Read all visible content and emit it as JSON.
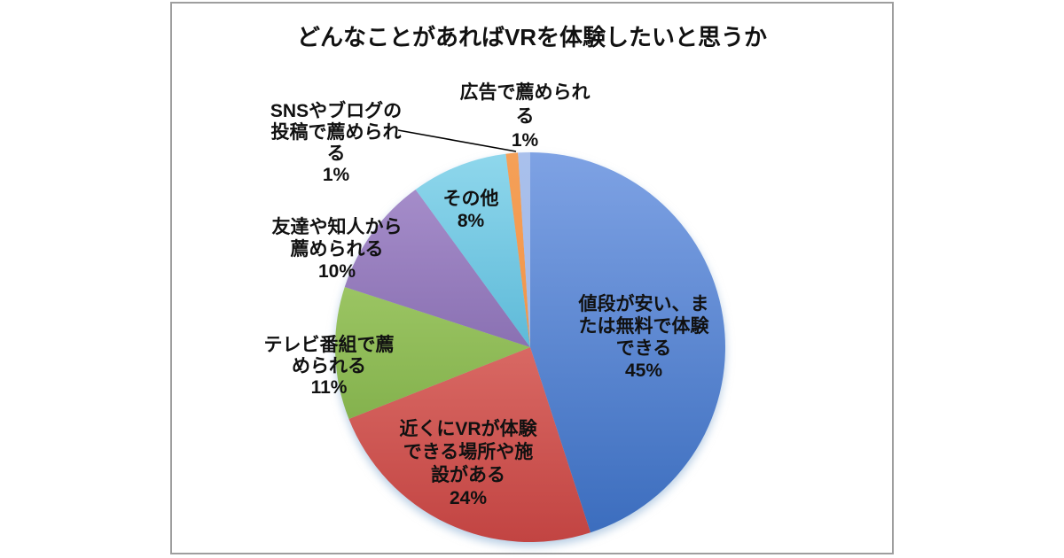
{
  "page": {
    "background": "#ffffff"
  },
  "chart_frame": {
    "border_color": "#9e9e9e",
    "background": "#ffffff"
  },
  "chart_data": {
    "type": "pie",
    "title": "どんなことがあればVRを体験したいと思うか",
    "unit": "%",
    "legend_position": "none",
    "labels_on_chart": true,
    "start_angle_deg": 0,
    "direction": "clockwise",
    "total": 100,
    "segments": [
      {
        "id": "price",
        "label": "値段が安い、または無料で体験できる",
        "value": 45,
        "percent_label": "45%",
        "label_lines": [
          "値段が安い、ま",
          "たは無料で体験",
          "できる",
          "45%"
        ],
        "color_top": "#7ea2e4",
        "color_bottom": "#3a6cbd"
      },
      {
        "id": "nearby",
        "label": "近くにVRが体験できる場所や施設がある",
        "value": 24,
        "percent_label": "24%",
        "label_lines": [
          "近くにVRが体験",
          "できる場所や施",
          "設がある",
          "24%"
        ],
        "color_top": "#ef8d85",
        "color_bottom": "#c24442"
      },
      {
        "id": "tv",
        "label": "テレビ番組で薦められる",
        "value": 11,
        "percent_label": "11%",
        "label_lines": [
          "テレビ番組で薦",
          "められる",
          "11%"
        ],
        "color_top": "#b2d878",
        "color_bottom": "#6fa03a"
      },
      {
        "id": "friends",
        "label": "友達や知人から薦められる",
        "value": 10,
        "percent_label": "10%",
        "label_lines": [
          "友達や知人から",
          "薦められる",
          "10%"
        ],
        "color_top": "#ab93cf",
        "color_bottom": "#6a4f96"
      },
      {
        "id": "other",
        "label": "その他",
        "value": 8,
        "percent_label": "8%",
        "label_lines": [
          "その他",
          "8%"
        ],
        "color_top": "#8fd7ec",
        "color_bottom": "#2d9dc5"
      },
      {
        "id": "sns",
        "label": "SNSやブログの投稿で薦められる",
        "value": 1,
        "percent_label": "1%",
        "label_lines": [
          "SNSやブログの",
          "投稿で薦められ",
          "る",
          "1%"
        ],
        "color_top": "#f5a058",
        "color_bottom": "#ee8a3a"
      },
      {
        "id": "ad",
        "label": "広告で薦められる",
        "value": 1,
        "percent_label": "1%",
        "label_lines": [
          "広告で薦められ",
          "る",
          "1%"
        ],
        "color_top": "#a9c0ec",
        "color_bottom": "#9db4e2"
      }
    ]
  }
}
